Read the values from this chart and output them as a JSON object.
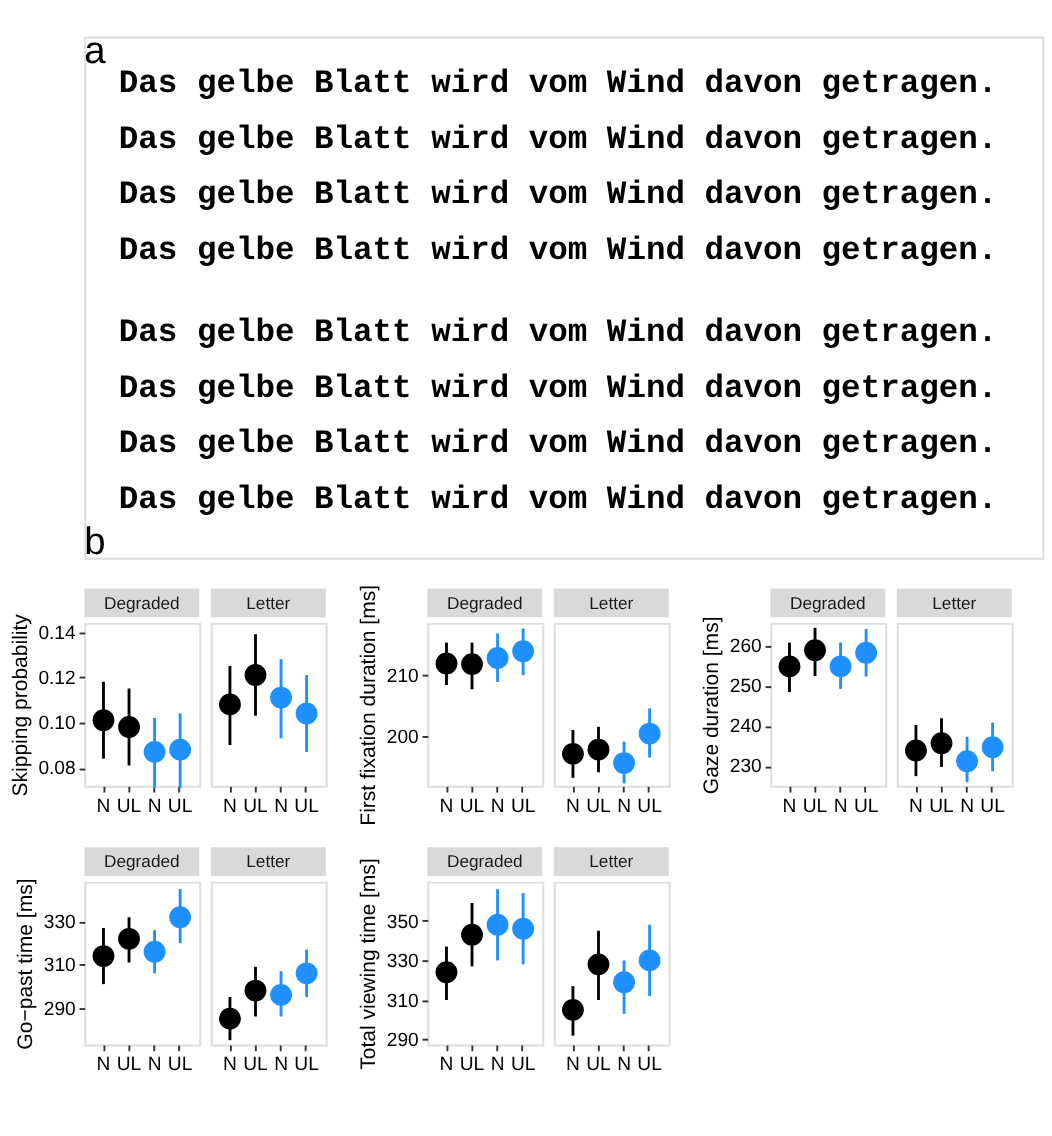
{
  "chart_data": [
    {
      "type": "other",
      "annotations": [
        "a",
        "Das gelbe Blatt wird vom Wind davon getragen.",
        "Das gelbe Blatt wird vom Wind davon getragen.",
        "Das gelbe Blatt wird vom Wind davon getragen.",
        "Das gelbe Blatt wird vom Wind davon getragen.",
        "Das gelbe Blatt wird vom Wind davon getragen.",
        "Das gelbe Blatt wird vom Wind davon getragen.",
        "Das gelbe Blatt wird vom Wind davon getragen.",
        "Das gelbe Blatt wird vom Wind davon getragen.",
        "b"
      ]
    },
    {
      "type": "scatter",
      "title": "Degraded",
      "ylabel": "Skipping probability",
      "categories": [
        "N",
        "UL",
        "N",
        "UL"
      ],
      "values": [
        0.101,
        0.098,
        0.087,
        0.088
      ],
      "errors": [
        [
          0.084,
          0.118
        ],
        [
          0.081,
          0.115
        ],
        [
          0.071,
          0.102
        ],
        [
          0.071,
          0.104
        ]
      ],
      "colors": [
        "#000000",
        "#000000",
        "#1e90ff",
        "#1e90ff"
      ],
      "ylim": [
        0.072,
        0.144
      ],
      "yticks": [
        {
          "value": 0.08,
          "label": "0.08"
        },
        {
          "value": 0.1,
          "label": "0.10"
        },
        {
          "value": 0.12,
          "label": "0.12"
        },
        {
          "value": 0.14,
          "label": "0.14"
        }
      ],
      "marker": "circle"
    },
    {
      "type": "scatter",
      "title": "Letter",
      "categories": [
        "N",
        "UL",
        "N",
        "UL"
      ],
      "values": [
        0.108,
        0.121,
        0.111,
        0.104
      ],
      "errors": [
        [
          0.09,
          0.125
        ],
        [
          0.103,
          0.139
        ],
        [
          0.093,
          0.128
        ],
        [
          0.087,
          0.121
        ]
      ],
      "colors": [
        "#000000",
        "#000000",
        "#1e90ff",
        "#1e90ff"
      ],
      "ylim": [
        0.072,
        0.144
      ],
      "tick_labels": "x",
      "marker": "circle"
    },
    {
      "type": "scatter",
      "title": "Degraded",
      "ylabel": "First fixation duration [ms]",
      "categories": [
        "N",
        "UL",
        "N",
        "UL"
      ],
      "values": [
        211.9,
        211.8,
        212.8,
        213.9
      ],
      "errors": [
        [
          208.4,
          215.3
        ],
        [
          207.7,
          215.3
        ],
        [
          208.9,
          216.8
        ],
        [
          210,
          217.6
        ]
      ],
      "colors": [
        "#000000",
        "#000000",
        "#1e90ff",
        "#1e90ff"
      ],
      "ylim": [
        192,
        218.5
      ],
      "yticks": [
        200,
        210
      ],
      "marker": "circle"
    },
    {
      "type": "scatter",
      "title": "Letter",
      "categories": [
        "N",
        "UL",
        "N",
        "UL"
      ],
      "values": [
        197.2,
        197.9,
        195.7,
        200.5
      ],
      "errors": [
        [
          193.3,
          201.1
        ],
        [
          194.2,
          201.6
        ],
        [
          192.4,
          199.2
        ],
        [
          196.6,
          204.6
        ]
      ],
      "colors": [
        "#000000",
        "#000000",
        "#1e90ff",
        "#1e90ff"
      ],
      "ylim": [
        192,
        218.5
      ],
      "tick_labels": "x",
      "marker": "circle"
    },
    {
      "type": "scatter",
      "title": "Degraded",
      "ylabel": "Gaze duration [ms]",
      "categories": [
        "N",
        "UL",
        "N",
        "UL"
      ],
      "values": [
        254.7,
        258.7,
        254.7,
        258.1
      ],
      "errors": [
        [
          248.3,
          260.6
        ],
        [
          252.3,
          264.3
        ],
        [
          249.1,
          260.6
        ],
        [
          252.2,
          264
        ]
      ],
      "colors": [
        "#000000",
        "#000000",
        "#1e90ff",
        "#1e90ff"
      ],
      "ylim": [
        225,
        265.5
      ],
      "yticks": [
        230,
        240,
        250,
        260
      ],
      "marker": "circle"
    },
    {
      "type": "scatter",
      "title": "Letter",
      "categories": [
        "N",
        "UL",
        "N",
        "UL"
      ],
      "values": [
        233.8,
        235.6,
        231.1,
        234.6
      ],
      "errors": [
        [
          227.4,
          240.1
        ],
        [
          229.7,
          241.8
        ],
        [
          225.9,
          237.2
        ],
        [
          228.6,
          240.7
        ]
      ],
      "colors": [
        "#000000",
        "#000000",
        "#1e90ff",
        "#1e90ff"
      ],
      "ylim": [
        225,
        265.5
      ],
      "tick_labels": "x",
      "marker": "circle"
    },
    {
      "type": "scatter",
      "title": "Degraded",
      "ylabel": "Go−past time [ms]",
      "categories": [
        "N",
        "UL",
        "N",
        "UL"
      ],
      "values": [
        314,
        322,
        316,
        332
      ],
      "errors": [
        [
          301,
          327
        ],
        [
          311,
          332
        ],
        [
          306,
          326
        ],
        [
          320,
          345
        ]
      ],
      "colors": [
        "#000000",
        "#000000",
        "#1e90ff",
        "#1e90ff"
      ],
      "ylim": [
        273,
        348.5
      ],
      "yticks": [
        290,
        310,
        330
      ],
      "marker": "circle"
    },
    {
      "type": "scatter",
      "title": "Letter",
      "categories": [
        "N",
        "UL",
        "N",
        "UL"
      ],
      "values": [
        285,
        298,
        296,
        306
      ],
      "errors": [
        [
          275,
          295
        ],
        [
          286,
          309
        ],
        [
          286,
          307
        ],
        [
          295,
          317
        ]
      ],
      "colors": [
        "#000000",
        "#000000",
        "#1e90ff",
        "#1e90ff"
      ],
      "ylim": [
        273,
        348.5
      ],
      "tick_labels": "x",
      "marker": "circle"
    },
    {
      "type": "scatter",
      "title": "Degraded",
      "ylabel": "Total viewing time [ms]",
      "categories": [
        "N",
        "UL",
        "N",
        "UL"
      ],
      "values": [
        324,
        343,
        348,
        346
      ],
      "errors": [
        [
          310,
          337
        ],
        [
          327,
          359
        ],
        [
          330,
          366
        ],
        [
          328,
          364
        ]
      ],
      "colors": [
        "#000000",
        "#000000",
        "#1e90ff",
        "#1e90ff"
      ],
      "ylim": [
        287.5,
        369.8
      ],
      "yticks": [
        290,
        310,
        330,
        350
      ],
      "marker": "circle"
    },
    {
      "type": "scatter",
      "title": "Letter",
      "categories": [
        "N",
        "UL",
        "N",
        "UL"
      ],
      "values": [
        305,
        328,
        319,
        330
      ],
      "errors": [
        [
          292,
          317
        ],
        [
          310,
          345
        ],
        [
          303,
          330
        ],
        [
          312,
          348
        ]
      ],
      "colors": [
        "#000000",
        "#000000",
        "#1e90ff",
        "#1e90ff"
      ],
      "ylim": [
        287.5,
        369.8
      ],
      "tick_labels": "x",
      "marker": "circle"
    }
  ]
}
